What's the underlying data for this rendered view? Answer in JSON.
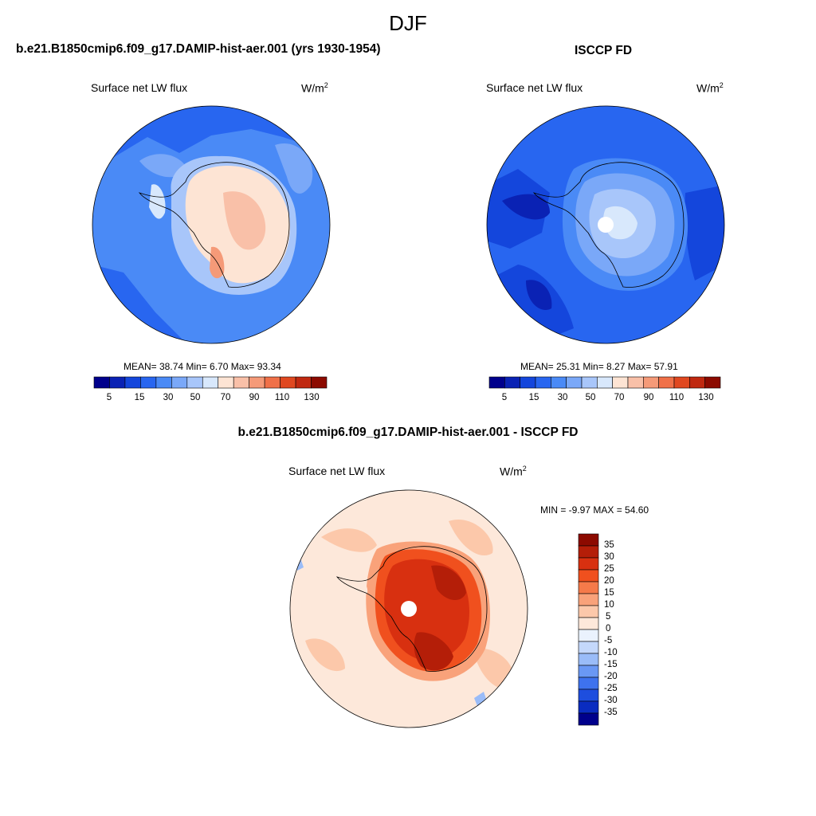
{
  "season": "DJF",
  "panels": [
    {
      "title": "b.e21.B1850cmip6.f09_g17.DAMIP-hist-aer.001 (yrs 1930-1954)",
      "variable": "Surface net LW flux",
      "units": "W/m",
      "units_sup": "2",
      "stats": "MEAN=  38.74  Min=   6.70  Max=  93.34",
      "colorbar_labels": [
        "5",
        "15",
        "30",
        "50",
        "70",
        "90",
        "110",
        "130"
      ]
    },
    {
      "title": "ISCCP FD",
      "variable": "Surface net LW flux",
      "units": "W/m",
      "units_sup": "2",
      "stats": "MEAN=  25.31  Min=   8.27  Max=  57.91",
      "colorbar_labels": [
        "5",
        "15",
        "30",
        "50",
        "70",
        "90",
        "110",
        "130"
      ]
    },
    {
      "title": "b.e21.B1850cmip6.f09_g17.DAMIP-hist-aer.001 - ISCCP FD",
      "variable": "Surface net LW flux",
      "units": "W/m",
      "units_sup": "2",
      "stats": "MIN =  -9.97 MAX =  54.60",
      "colorbar_labels": [
        "35",
        "30",
        "25",
        "20",
        "15",
        "10",
        "5",
        "0",
        "-5",
        "-10",
        "-15",
        "-20",
        "-25",
        "-30",
        "-35"
      ]
    }
  ],
  "colors": {
    "abs_scale": [
      "#00008c",
      "#0a22b4",
      "#1446dc",
      "#2866f0",
      "#4a8af6",
      "#7aa8f8",
      "#a8c6fa",
      "#d8e8fc",
      "#fde4d4",
      "#f9c0a8",
      "#f59a78",
      "#f07048",
      "#e04820",
      "#c02810",
      "#8c0a00"
    ],
    "diff_scale": [
      "#8c0a00",
      "#b41e08",
      "#d83010",
      "#f0501e",
      "#f57a4a",
      "#f9a27a",
      "#fcc8aa",
      "#fde8da",
      "#eaf2fd",
      "#c4d8fb",
      "#9abcf8",
      "#6a98f4",
      "#3e72ee",
      "#1e4ede",
      "#0a2cc0",
      "#00008c"
    ],
    "land_outline": "#000000"
  }
}
